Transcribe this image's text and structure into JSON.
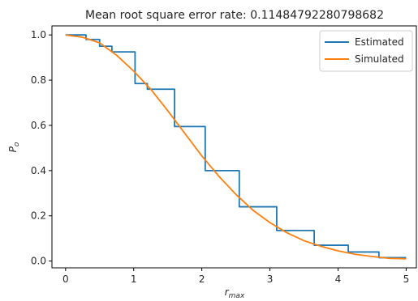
{
  "chart_data": {
    "type": "line",
    "title": "Mean root square error rate: 0.11484792280798682",
    "xlabel": "r",
    "xlabel_sub": "max",
    "ylabel": "P",
    "ylabel_sub": "o",
    "xlim": [
      -0.2,
      5.15
    ],
    "ylim": [
      -0.03,
      1.04
    ],
    "xticks": [
      0,
      1,
      2,
      3,
      4,
      5
    ],
    "xtick_labels": [
      "0",
      "1",
      "2",
      "3",
      "4",
      "5"
    ],
    "yticks": [
      0.0,
      0.2,
      0.4,
      0.6,
      0.8,
      1.0
    ],
    "ytick_labels": [
      "0.0",
      "0.2",
      "0.4",
      "0.6",
      "0.8",
      "1.0"
    ],
    "grid": false,
    "legend_position": "upper right",
    "series": [
      {
        "name": "Estimated",
        "color": "#1f77b4",
        "style": "step",
        "x": [
          0.0,
          0.3,
          0.3,
          0.5,
          0.5,
          0.68,
          0.68,
          1.02,
          1.02,
          1.2,
          1.2,
          1.6,
          1.6,
          2.05,
          2.05,
          2.55,
          2.55,
          3.1,
          3.1,
          3.65,
          3.65,
          4.15,
          4.15,
          4.6,
          4.6,
          5.0
        ],
        "y": [
          1.0,
          1.0,
          0.98,
          0.98,
          0.95,
          0.95,
          0.925,
          0.925,
          0.785,
          0.785,
          0.76,
          0.76,
          0.595,
          0.595,
          0.4,
          0.4,
          0.24,
          0.24,
          0.135,
          0.135,
          0.07,
          0.07,
          0.04,
          0.04,
          0.015,
          0.015
        ]
      },
      {
        "name": "Simulated",
        "color": "#ff7f0e",
        "style": "line",
        "x": [
          0.0,
          0.25,
          0.5,
          0.75,
          1.0,
          1.25,
          1.5,
          1.75,
          2.0,
          2.25,
          2.5,
          2.75,
          3.0,
          3.25,
          3.5,
          3.75,
          4.0,
          4.25,
          4.5,
          4.75,
          5.0
        ],
        "y": [
          1.0,
          0.99,
          0.965,
          0.91,
          0.84,
          0.76,
          0.665,
          0.565,
          0.465,
          0.375,
          0.295,
          0.225,
          0.17,
          0.125,
          0.09,
          0.065,
          0.045,
          0.03,
          0.02,
          0.012,
          0.01
        ]
      }
    ]
  }
}
